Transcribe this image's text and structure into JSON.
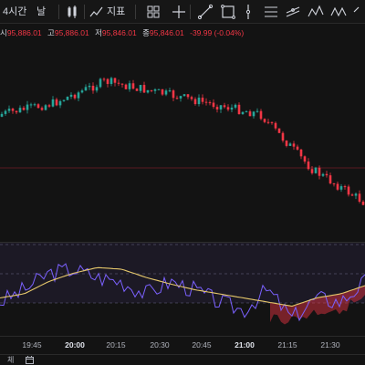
{
  "toolbar": {
    "interval_label": "4시간",
    "date_label": "날",
    "indicators_label": "지표"
  },
  "legend": {
    "open_label": "시",
    "open_value": "95,886.01",
    "high_label": "고",
    "high_value": "95,886.01",
    "low_label": "저",
    "low_value": "95,846.01",
    "close_label": "종",
    "close_value": "95,846.01",
    "change_value": "-39.99 (-0.04%)"
  },
  "time_axis": {
    "ticks": [
      "19:45",
      "20:00",
      "20:15",
      "20:30",
      "20:45",
      "21:00",
      "21:15",
      "21:30"
    ]
  },
  "bottom_bar": {
    "range_label": "체"
  },
  "colors": {
    "up": "#26a69a",
    "down": "#f23645",
    "signal_line": "#e5c76b",
    "oscillator_line": "#7b61ff",
    "band_fill": "#4a3a7a"
  },
  "chart_data": [
    {
      "type": "candlestick",
      "title": "",
      "x": [
        "19:45",
        "20:00",
        "20:15",
        "20:30",
        "20:45",
        "21:00",
        "21:15",
        "21:30"
      ],
      "close_path": [
        100,
        101,
        103,
        102,
        101,
        100,
        95,
        92
      ],
      "grid": false
    },
    {
      "type": "line",
      "title": "",
      "series": [
        {
          "values": [
            35,
            40,
            55,
            65,
            72,
            70,
            60,
            52,
            45,
            40,
            35,
            30,
            25,
            35,
            40,
            50
          ]
        },
        {
          "values": [
            30,
            45,
            65,
            70,
            60,
            55,
            40,
            55,
            45,
            30,
            20,
            45,
            10,
            35,
            30,
            55
          ]
        }
      ],
      "grid": true
    }
  ]
}
